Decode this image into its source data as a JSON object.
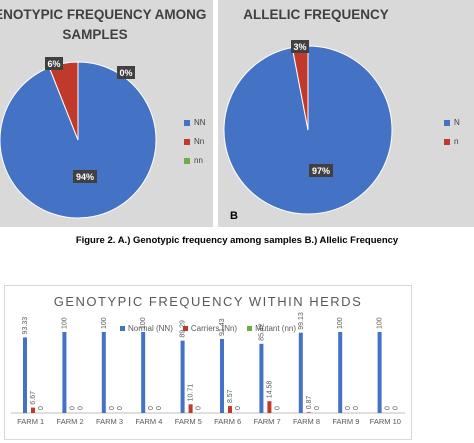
{
  "caption": "Figure 2. A.) Genotypic frequency among samples B.)  Allelic Frequency",
  "panel_letter": "B",
  "colors": {
    "blue": "#4472c4",
    "red": "#c0392b",
    "green": "#70ad47",
    "panel_bg": "#d9d9d9"
  },
  "chart_data": [
    {
      "type": "pie",
      "title_line1": "GENOTYPIC FREQUENCY AMONG",
      "title_line2": "SAMPLES",
      "slices": [
        {
          "name": "NN",
          "value": 94,
          "label": "94%",
          "color": "#4472c4"
        },
        {
          "name": "Nn",
          "value": 6,
          "label": "6%",
          "color": "#c0392b"
        },
        {
          "name": "nn",
          "value": 0,
          "label": "0%",
          "color": "#70ad47"
        }
      ],
      "legend": [
        "NN",
        "Nn",
        "nn"
      ],
      "legend_position": "right"
    },
    {
      "type": "pie",
      "title": "ALLELIC FREQUENCY",
      "slices": [
        {
          "name": "N",
          "value": 97,
          "label": "97%",
          "color": "#4472c4"
        },
        {
          "name": "n",
          "value": 3,
          "label": "3%",
          "color": "#c0392b"
        }
      ],
      "legend": [
        "N",
        "n"
      ],
      "legend_position": "right"
    },
    {
      "type": "bar",
      "title": "GENOTYPIC FREQUENCY WITHIN HERDS",
      "categories": [
        "FARM 1",
        "FARM 2",
        "FARM 3",
        "FARM 4",
        "FARM 5",
        "FARM 6",
        "FARM 7",
        "FARM 8",
        "FARM 9",
        "FARM 10"
      ],
      "series": [
        {
          "name": "Normal (NN)",
          "color": "#4472c4",
          "values": [
            93.33,
            100,
            100,
            100,
            89.29,
            91.43,
            85.42,
            99.13,
            100,
            100
          ],
          "labels": [
            "93.33",
            "100",
            "100",
            "100",
            "89.29",
            "91.43",
            "85.42",
            "99.13",
            "100",
            "100"
          ]
        },
        {
          "name": "Carriers (Nn)",
          "color": "#c0392b",
          "values": [
            6.67,
            0,
            0,
            0,
            10.71,
            8.57,
            14.58,
            0.87,
            0,
            0
          ],
          "labels": [
            "6.67",
            "0",
            "0",
            "0",
            "10.71",
            "8.57",
            "14.58",
            "0.87",
            "0",
            "0"
          ]
        },
        {
          "name": "Mutant (nn)",
          "color": "#70ad47",
          "values": [
            0,
            0,
            0,
            0,
            0,
            0,
            0,
            0,
            0,
            0
          ],
          "labels": [
            "0",
            "0",
            "0",
            "0",
            "0",
            "0",
            "0",
            "0",
            "0",
            "0"
          ]
        }
      ],
      "ylim": [
        0,
        100
      ],
      "legend_position": "top",
      "grid": false
    }
  ]
}
